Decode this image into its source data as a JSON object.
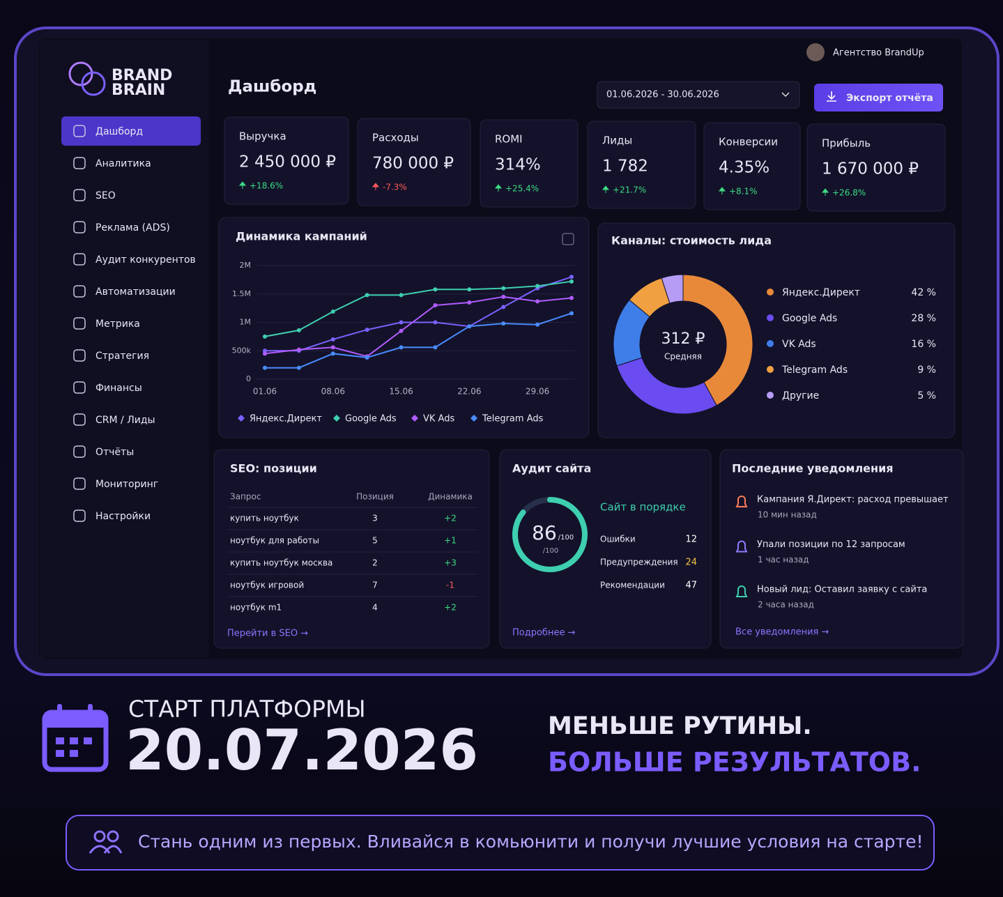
{
  "top_bar": {
    "account": "Агентство BrandUp"
  },
  "brand": {
    "line1": "BRAND",
    "line2": "BRAIN"
  },
  "sidebar": {
    "items": [
      "Дашборд",
      "Аналитика",
      "SEO",
      "Реклама (ADS)",
      "Аудит конкурентов",
      "Автоматизации",
      "Метрика",
      "Стратегия",
      "Финансы",
      "CRM / Лиды",
      "Отчёты",
      "Мониторинг",
      "Настройки"
    ],
    "active": 0
  },
  "header": {
    "title": "Дашборд",
    "date_range": "01.06.2026 - 30.06.2026",
    "export_button": "Экспорт отчёта"
  },
  "kpis": [
    {
      "label": "Выручка",
      "value": "2 450 000 ₽",
      "change": "+18.6%",
      "trend": "up"
    },
    {
      "label": "Расходы",
      "value": "780 000 ₽",
      "change": "-7.3%",
      "trend": "down"
    },
    {
      "label": "ROMI",
      "value": "314%",
      "change": "+25.4%",
      "trend": "up"
    },
    {
      "label": "Лиды",
      "value": "1 782",
      "change": "+21.7%",
      "trend": "up"
    },
    {
      "label": "Конверсии",
      "value": "4.35%",
      "change": "+8.1%",
      "trend": "up"
    },
    {
      "label": "Прибыль",
      "value": "1 670 000 ₽",
      "change": "+26.8%",
      "trend": "up"
    }
  ],
  "chart_data": [
    {
      "type": "line",
      "title": "Динамика кампаний",
      "categories": [
        "01.06",
        null,
        "08.06",
        null,
        "15.06",
        null,
        "22.06",
        null,
        "29.06",
        null
      ],
      "series": [
        {
          "name": "Яндекс.Директ",
          "color": "#7b61ff",
          "values": [
            500000,
            500000,
            700000,
            870000,
            1000000,
            1000000,
            930000,
            1270000,
            1600000,
            1800000
          ]
        },
        {
          "name": "Google Ads",
          "color": "#3ecfb0",
          "values": [
            750000,
            860000,
            1190000,
            1480000,
            1480000,
            1580000,
            1580000,
            1600000,
            1640000,
            1720000
          ]
        },
        {
          "name": "VK Ads",
          "color": "#b15cff",
          "values": [
            450000,
            520000,
            560000,
            400000,
            850000,
            1300000,
            1350000,
            1450000,
            1370000,
            1430000
          ]
        },
        {
          "name": "Telegram Ads",
          "color": "#4a8cff",
          "values": [
            200000,
            200000,
            450000,
            380000,
            560000,
            560000,
            930000,
            980000,
            960000,
            1160000
          ]
        }
      ],
      "ylim": [
        0,
        2000000
      ],
      "yticks": [
        0,
        {
          "value": 500000,
          "label": "500k"
        },
        {
          "value": 1000000,
          "label": "1M"
        },
        {
          "value": 1500000,
          "label": "1.5M"
        },
        {
          "value": 2000000,
          "label": "2M"
        }
      ],
      "grid": true
    },
    {
      "type": "donut",
      "title": "Каналы: стоимость лида",
      "center_value": "312 ₽",
      "center_label": "Средняя",
      "categories": [
        "Яндекс.Директ",
        "Google Ads",
        "VK Ads",
        "Telegram Ads",
        "Другие"
      ],
      "values": [
        42,
        28,
        16,
        9,
        5
      ],
      "value_labels": [
        "42 %",
        "28 %",
        "16 %",
        "9 %",
        "5 %"
      ],
      "colors": [
        "#e8893a",
        "#6a4cf0",
        "#3f7ee8",
        "#f0a040",
        "#b69cf5"
      ]
    }
  ],
  "seo": {
    "title": "SEO: позиции",
    "columns": [
      "Запрос",
      "Позиция",
      "Динамика"
    ],
    "rows": [
      [
        "купить ноутбук",
        "3",
        "+2"
      ],
      [
        "ноутбук для работы",
        "5",
        "+1"
      ],
      [
        "купить ноутбук москва",
        "2",
        "+3"
      ],
      [
        "ноутбук игровой",
        "7",
        "-1"
      ],
      [
        "ноутбук m1",
        "4",
        "+2"
      ]
    ],
    "link": "Перейти в SEO →"
  },
  "audit": {
    "title": "Аудит сайта",
    "score": 86,
    "scale": {
      "value": 100,
      "label": "/100"
    },
    "status": "Сайт в порядке",
    "metrics": [
      {
        "label": "Ошибки",
        "value": 12,
        "color": "#ffffff"
      },
      {
        "label": "Предупреждения",
        "value": 24,
        "color": "#f5c242"
      },
      {
        "label": "Рекомендации",
        "value": 47,
        "color": "#ffffff"
      }
    ],
    "link": "Подробнее →"
  },
  "notifications": {
    "title": "Последние уведомления",
    "items": [
      {
        "text": "Кампания Я.Директ: расход превышает",
        "time": "10 мин назад",
        "color": "#ff7a59"
      },
      {
        "text": "Упали позиции по 12 запросам",
        "time": "1 час назад",
        "color": "#8f7bff"
      },
      {
        "text": "Новый лид: Оставил заявку с сайта",
        "time": "2 часа назад",
        "color": "#3ecfb0"
      }
    ],
    "link": "Все уведомления →"
  },
  "promo": {
    "start_label": "СТАРТ ПЛАТФОРМЫ",
    "start_date": "20.07.2026",
    "slogan_1": "МЕНЬШЕ РУТИНЫ.",
    "slogan_2": "БОЛЬШЕ РЕЗУЛЬТАТОВ.",
    "cta": "Стань одним из первых. Вливайся в комьюнити и получи лучшие условия на старте!"
  }
}
